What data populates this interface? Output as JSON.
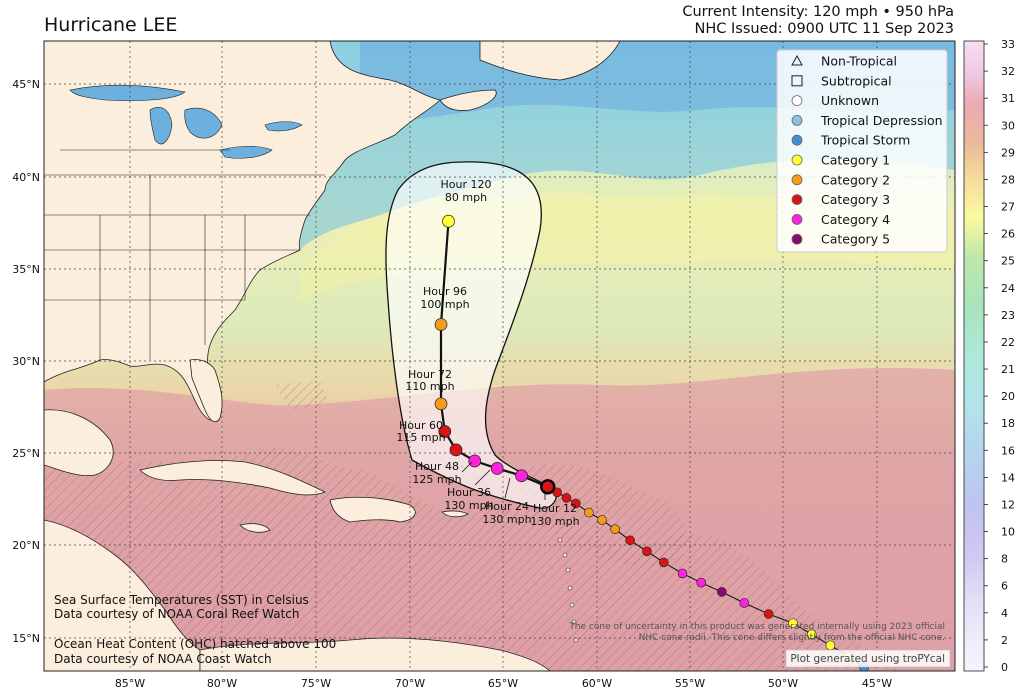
{
  "title": "Hurricane LEE",
  "current_intensity": "Current Intensity: 120 mph • 950 hPa",
  "issued": "NHC Issued: 0900 UTC 11 Sep 2023",
  "lat_ticks": [
    "45°N",
    "40°N",
    "35°N",
    "30°N",
    "25°N",
    "20°N",
    "15°N"
  ],
  "lon_ticks": [
    "85°W",
    "80°W",
    "75°W",
    "70°W",
    "65°W",
    "60°W",
    "55°W",
    "50°W",
    "45°W"
  ],
  "colorbar_ticks": [
    "33",
    "32",
    "31",
    "30",
    "29",
    "28",
    "27",
    "26",
    "25",
    "24",
    "23",
    "22",
    "21",
    "20",
    "18",
    "16",
    "14",
    "12",
    "10",
    "8",
    "6",
    "4",
    "2",
    "0"
  ],
  "legend": [
    {
      "label": "Non-Tropical",
      "marker": "triangle",
      "color": "none"
    },
    {
      "label": "Subtropical",
      "marker": "square",
      "color": "none"
    },
    {
      "label": "Unknown",
      "marker": "circle",
      "color": "#ffffff"
    },
    {
      "label": "Tropical Depression",
      "marker": "circle",
      "color": "#8fbfe8"
    },
    {
      "label": "Tropical Storm",
      "marker": "circle",
      "color": "#3d8fd6"
    },
    {
      "label": "Category 1",
      "marker": "circle",
      "color": "#ffff33"
    },
    {
      "label": "Category 2",
      "marker": "circle",
      "color": "#f39c1a"
    },
    {
      "label": "Category 3",
      "marker": "circle",
      "color": "#d81414"
    },
    {
      "label": "Category 4",
      "marker": "circle",
      "color": "#ff22dd"
    },
    {
      "label": "Category 5",
      "marker": "circle",
      "color": "#8b0a72"
    }
  ],
  "forecast_labels": [
    {
      "hour": "Hour 120",
      "wind": "80 mph"
    },
    {
      "hour": "Hour 96",
      "wind": "100 mph"
    },
    {
      "hour": "Hour 72",
      "wind": "110 mph"
    },
    {
      "hour": "Hour 60",
      "wind": "115 mph"
    },
    {
      "hour": "Hour 48",
      "wind": "125 mph"
    },
    {
      "hour": "Hour 36",
      "wind": "130 mph"
    },
    {
      "hour": "Hour 24",
      "wind": "130 mph"
    },
    {
      "hour": "Hour 12",
      "wind": "130 mph"
    }
  ],
  "sst_credit": [
    "Sea Surface Temperatures (SST) in Celsius",
    "Data courtesy of NOAA Coral Reef Watch"
  ],
  "ohc_credit": [
    "Ocean Heat Content (OHC) hatched above 100",
    "Data courtesy of NOAA Coast Watch"
  ],
  "disclaimer": [
    "The cone of uncertainty in this product was generated internally using 2023 official",
    "NHC cone radii. This cone differs slightly from the official NHC cone."
  ],
  "plot_credit": "Plot generated using troPYcal",
  "track": {
    "past": [
      {
        "lon": -45.7,
        "lat": 13.4,
        "cat": "Tropical Storm"
      },
      {
        "lon": -46.5,
        "lat": 14.0,
        "cat": "Category 1"
      },
      {
        "lon": -47.5,
        "lat": 14.6,
        "cat": "Category 1"
      },
      {
        "lon": -48.5,
        "lat": 15.2,
        "cat": "Category 1"
      },
      {
        "lon": -49.5,
        "lat": 15.8,
        "cat": "Category 1"
      },
      {
        "lon": -50.8,
        "lat": 16.3,
        "cat": "Category 3"
      },
      {
        "lon": -52.1,
        "lat": 16.9,
        "cat": "Category 4"
      },
      {
        "lon": -53.3,
        "lat": 17.5,
        "cat": "Category 5"
      },
      {
        "lon": -54.4,
        "lat": 18.0,
        "cat": "Category 4"
      },
      {
        "lon": -55.4,
        "lat": 18.5,
        "cat": "Category 4"
      },
      {
        "lon": -56.4,
        "lat": 19.1,
        "cat": "Category 3"
      },
      {
        "lon": -57.3,
        "lat": 19.7,
        "cat": "Category 3"
      },
      {
        "lon": -58.2,
        "lat": 20.3,
        "cat": "Category 3"
      },
      {
        "lon": -59.0,
        "lat": 20.9,
        "cat": "Category 2"
      },
      {
        "lon": -59.7,
        "lat": 21.4,
        "cat": "Category 2"
      },
      {
        "lon": -60.4,
        "lat": 21.8,
        "cat": "Category 2"
      },
      {
        "lon": -61.1,
        "lat": 22.3,
        "cat": "Category 3"
      },
      {
        "lon": -61.6,
        "lat": 22.6,
        "cat": "Category 3"
      },
      {
        "lon": -62.1,
        "lat": 22.9,
        "cat": "Category 3"
      }
    ],
    "current": {
      "lon": -62.6,
      "lat": 23.2,
      "cat": "Category 3"
    },
    "forecast": [
      {
        "lon": -64.0,
        "lat": 23.8,
        "cat": "Category 4"
      },
      {
        "lon": -65.3,
        "lat": 24.2,
        "cat": "Category 4"
      },
      {
        "lon": -66.5,
        "lat": 24.6,
        "cat": "Category 4"
      },
      {
        "lon": -67.5,
        "lat": 25.2,
        "cat": "Category 3"
      },
      {
        "lon": -68.1,
        "lat": 26.2,
        "cat": "Category 3"
      },
      {
        "lon": -68.3,
        "lat": 27.7,
        "cat": "Category 2"
      },
      {
        "lon": -68.3,
        "lat": 32.0,
        "cat": "Category 2"
      },
      {
        "lon": -67.9,
        "lat": 37.6,
        "cat": "Category 1"
      }
    ]
  },
  "colors": {
    "land": "#fbeedd",
    "coast": "#222222",
    "track_line": "#111111"
  }
}
